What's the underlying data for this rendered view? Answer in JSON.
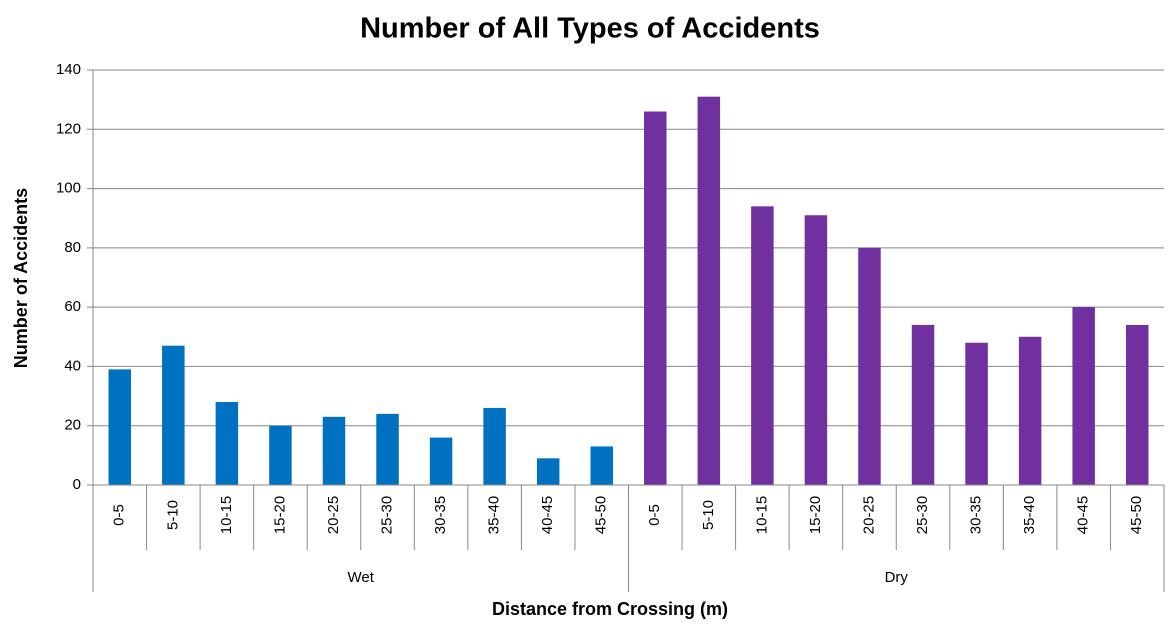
{
  "chart_data": {
    "type": "bar",
    "title": "Number of All Types of Accidents",
    "x_label": "Distance from Crossing (m)",
    "y_label": "Number of Accidents",
    "groups": [
      {
        "name": "Wet",
        "color": "#0070c0",
        "categories": [
          "0-5",
          "5-10",
          "10-15",
          "15-20",
          "20-25",
          "25-30",
          "30-35",
          "35-40",
          "40-45",
          "45-50"
        ],
        "values": [
          39,
          47,
          28,
          20,
          23,
          24,
          16,
          26,
          9,
          13
        ]
      },
      {
        "name": "Dry",
        "color": "#7030a0",
        "categories": [
          "0-5",
          "5-10",
          "10-15",
          "15-20",
          "20-25",
          "25-30",
          "30-35",
          "35-40",
          "40-45",
          "45-50"
        ],
        "values": [
          126,
          131,
          94,
          91,
          80,
          54,
          48,
          50,
          60,
          54
        ]
      }
    ],
    "ylim": [
      0,
      140
    ],
    "yticks": [
      0,
      20,
      40,
      60,
      80,
      100,
      120,
      140
    ],
    "grid": true
  }
}
